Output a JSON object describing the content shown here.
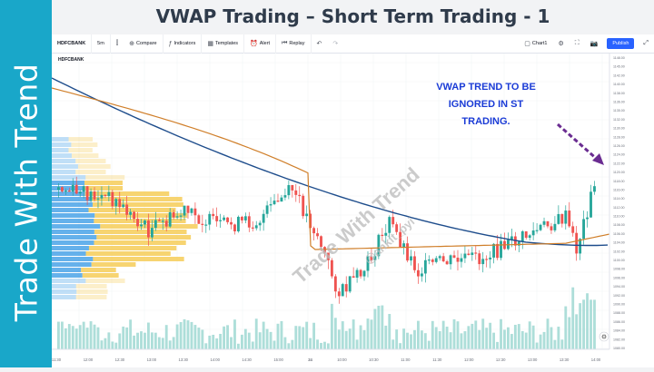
{
  "banner": {
    "text": "Trade With Trend"
  },
  "slide": {
    "title": "VWAP Trading – Short Term Trading - 1"
  },
  "toolbar": {
    "symbol": "HDFCBANK",
    "interval": "5m",
    "compare": "Compare",
    "indicators": "Indicators",
    "templates": "Templates",
    "alert": "Alert",
    "replay": "Replay",
    "layout_name": "Chart1",
    "publish": "Publish"
  },
  "chart": {
    "symbol_badge": "HDFCBANK",
    "annotation": [
      "VWAP TREND TO BE",
      "IGNORED IN ST",
      "TRADING."
    ],
    "watermark_main": "Trade With Trend",
    "watermark_handle": "@ankit_pyi",
    "settings_badge": "⚙",
    "price_axis": [
      "1148.00",
      "1145.00",
      "1142.00",
      "1140.00",
      "1138.00",
      "1136.00",
      "1135.00",
      "1132.00",
      "1130.00",
      "1128.00",
      "1126.00",
      "1124.00",
      "1122.00",
      "1120.00",
      "1118.00",
      "1116.00",
      "1114.00",
      "1112.00",
      "1110.00",
      "1108.00",
      "1106.00",
      "1104.00",
      "1102.00",
      "1100.00",
      "1098.00",
      "1096.00",
      "1094.00",
      "1092.00",
      "1090.00",
      "1088.00",
      "1086.00",
      "1084.00",
      "1082.00",
      "1080.00"
    ],
    "time_axis": [
      "11:30",
      "12:00",
      "12:30",
      "13:00",
      "13:30",
      "14:00",
      "14:30",
      "15:00",
      "24",
      "10:00",
      "10:30",
      "11:00",
      "11:30",
      "12:00",
      "12:30",
      "13:00",
      "13:30",
      "14:00"
    ],
    "colors": {
      "up": "#26a69a",
      "down": "#ef5350",
      "vwap_long": "#1e4d8c",
      "vwap_short": "#d07f2a",
      "volume": "#9fd8d2",
      "profile_blue": "#4aa3e8",
      "profile_yellow": "#f5c94e",
      "annotation": "#1a3bd6",
      "arrow": "#6a2c91"
    }
  }
}
